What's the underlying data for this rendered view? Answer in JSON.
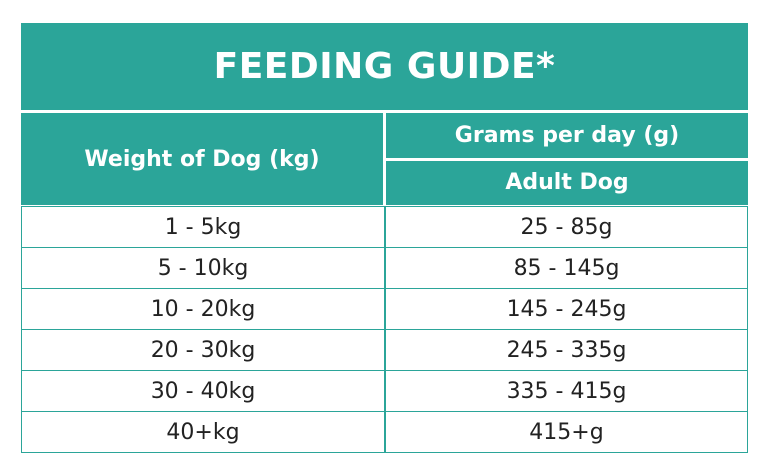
{
  "title": "FEEDING GUIDE*",
  "headers": {
    "weight": "Weight of Dog (kg)",
    "grams": "Grams per day (g)",
    "adult": "Adult Dog"
  },
  "accent_color": "#2ba599",
  "rows": [
    {
      "weight": "1 - 5kg",
      "grams": "25 - 85g"
    },
    {
      "weight": "5 - 10kg",
      "grams": "85 - 145g"
    },
    {
      "weight": "10 - 20kg",
      "grams": "145 - 245g"
    },
    {
      "weight": "20 - 30kg",
      "grams": "245 - 335g"
    },
    {
      "weight": "30 - 40kg",
      "grams": "335 - 415g"
    },
    {
      "weight": "40+kg",
      "grams": "415+g"
    }
  ]
}
